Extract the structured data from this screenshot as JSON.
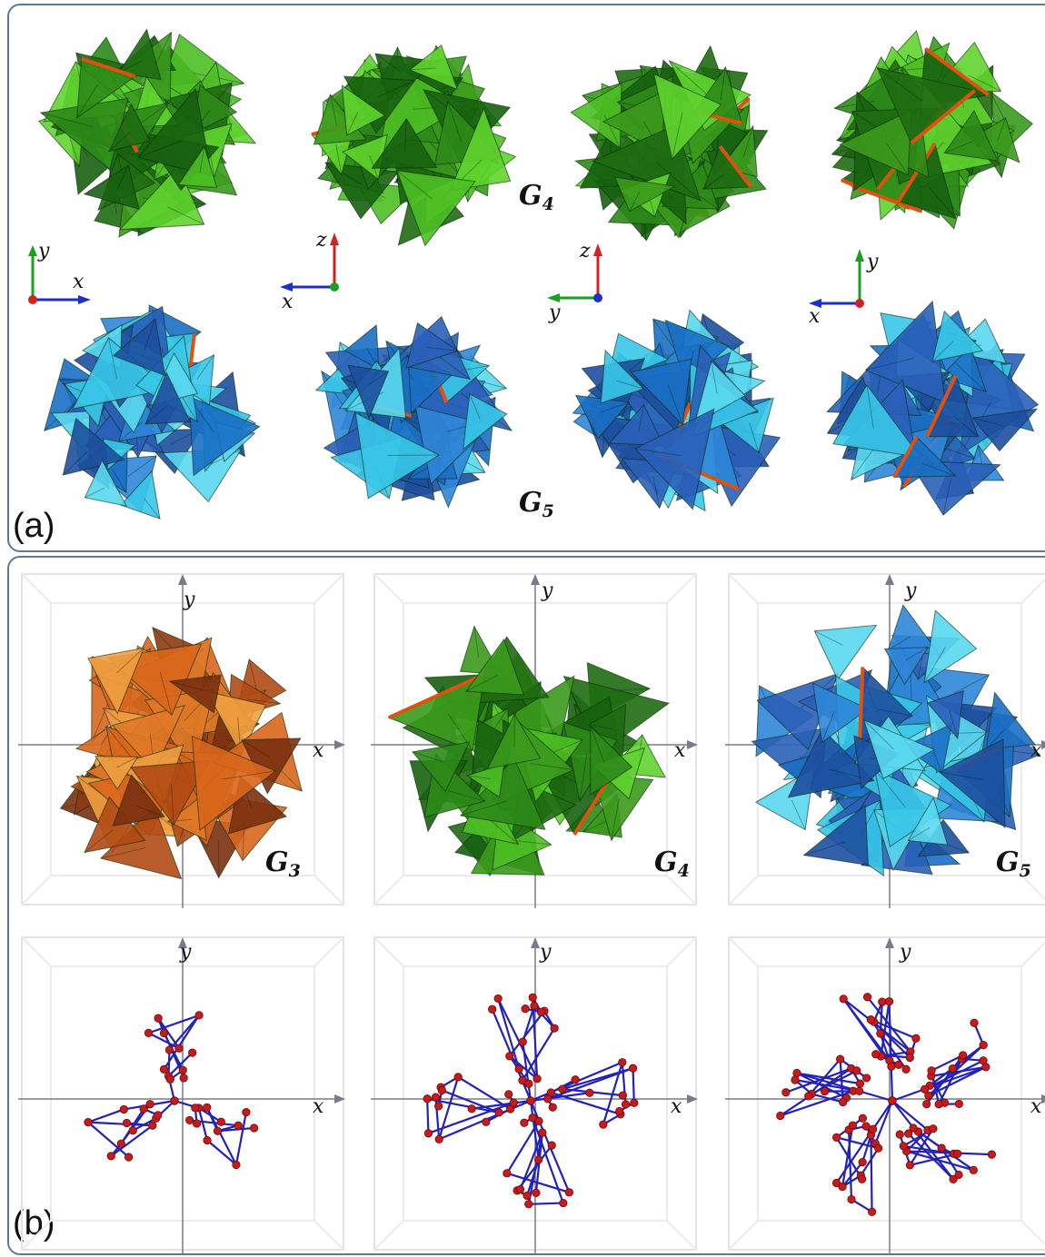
{
  "panels": {
    "a": {
      "label": "(a)",
      "row1_group": {
        "name": "G",
        "sub": "4"
      },
      "row2_group": {
        "name": "G",
        "sub": "5"
      },
      "triads": [
        {
          "h": "x",
          "v": "y"
        },
        {
          "h": "x",
          "v": "z"
        },
        {
          "h": "y",
          "v": "z"
        },
        {
          "h": "x",
          "v": "y"
        }
      ]
    },
    "b": {
      "label": "(b)",
      "groups": [
        {
          "name": "G",
          "sub": "3"
        },
        {
          "name": "G",
          "sub": "4"
        },
        {
          "name": "G",
          "sub": "5"
        }
      ],
      "axis_x": "x",
      "axis_y": "y"
    }
  },
  "colors": {
    "border": "#5b7a95",
    "green_dark": "#1f6b12",
    "green_mid": "#3b9a1c",
    "green_light": "#5fd42e",
    "blue_dark": "#1d4f9e",
    "blue_mid": "#2f86d8",
    "cyan": "#39c7e8",
    "orange_dark": "#8c3a10",
    "orange_mid": "#d8661c",
    "orange_light": "#f0a040",
    "bond": "#2222b8",
    "atom": "#c81a1a",
    "axis_red": "#d42020",
    "axis_green": "#1aa020",
    "axis_blue": "#1a30c8"
  }
}
